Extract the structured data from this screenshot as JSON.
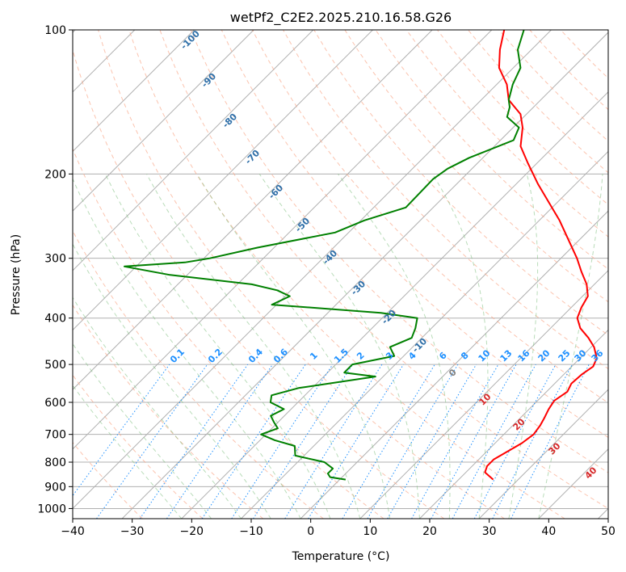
{
  "chart_data": {
    "type": "line",
    "title": "wetPf2_C2E2.2025.210.16.58.G26",
    "xlabel": "Temperature (°C)",
    "ylabel": "Pressure (hPa)",
    "xlim": [
      -40,
      50
    ],
    "ylim": [
      1050,
      100
    ],
    "y_scale": "log",
    "x_ticks": [
      -40,
      -30,
      -20,
      -10,
      0,
      10,
      20,
      30,
      40,
      50
    ],
    "y_ticks": [
      100,
      200,
      300,
      400,
      500,
      600,
      700,
      800,
      900,
      1000
    ],
    "grid": true,
    "skew_t": true,
    "series": [
      {
        "role": "temperature",
        "color": "#ff0000",
        "points": [
          [
            25.8,
            870
          ],
          [
            24.5,
            855
          ],
          [
            23.2,
            840
          ],
          [
            22.5,
            815
          ],
          [
            22.5,
            790
          ],
          [
            23.5,
            760
          ],
          [
            24.5,
            730
          ],
          [
            25.0,
            700
          ],
          [
            24.6,
            670
          ],
          [
            24.0,
            645
          ],
          [
            23.3,
            620
          ],
          [
            22.8,
            595
          ],
          [
            23.5,
            570
          ],
          [
            22.8,
            548
          ],
          [
            23.0,
            525
          ],
          [
            23.6,
            505
          ],
          [
            22.8,
            485
          ],
          [
            20.5,
            460
          ],
          [
            18.0,
            440
          ],
          [
            15.0,
            420
          ],
          [
            12.8,
            400
          ],
          [
            11.7,
            380
          ],
          [
            10.9,
            360
          ],
          [
            8.7,
            340
          ],
          [
            5.7,
            320
          ],
          [
            2.7,
            300
          ],
          [
            -6.6,
            250
          ],
          [
            -16.3,
            210
          ],
          [
            -21.5,
            190
          ],
          [
            -25.6,
            175
          ],
          [
            -28.4,
            160
          ],
          [
            -31.0,
            150
          ],
          [
            -35.4,
            140
          ],
          [
            -38.3,
            130
          ],
          [
            -42.4,
            120
          ],
          [
            -45.3,
            110
          ],
          [
            -47.9,
            100
          ]
        ]
      },
      {
        "role": "dewpoint",
        "color": "#008000",
        "points": [
          [
            1.0,
            870
          ],
          [
            -2.0,
            860
          ],
          [
            -3.0,
            845
          ],
          [
            -3.0,
            825
          ],
          [
            -5.5,
            800
          ],
          [
            -11.5,
            775
          ],
          [
            -13.2,
            740
          ],
          [
            -17.5,
            720
          ],
          [
            -20.8,
            700
          ],
          [
            -19.0,
            680
          ],
          [
            -20.7,
            660
          ],
          [
            -22.3,
            640
          ],
          [
            -21.2,
            620
          ],
          [
            -24.6,
            600
          ],
          [
            -25.6,
            580
          ],
          [
            -22.3,
            560
          ],
          [
            -11.3,
            530
          ],
          [
            -17.2,
            520
          ],
          [
            -17.2,
            500
          ],
          [
            -11.6,
            480
          ],
          [
            -13.8,
            460
          ],
          [
            -11.7,
            440
          ],
          [
            -12.7,
            420
          ],
          [
            -14.1,
            400
          ],
          [
            -21.1,
            390
          ],
          [
            -40.8,
            375
          ],
          [
            -39.2,
            360
          ],
          [
            -42.3,
            350
          ],
          [
            -47.6,
            340
          ],
          [
            -62.9,
            325
          ],
          [
            -72.0,
            312
          ],
          [
            -62.5,
            306
          ],
          [
            -59.0,
            300
          ],
          [
            -52.8,
            285
          ],
          [
            -42.3,
            265
          ],
          [
            -39.4,
            250
          ],
          [
            -34.6,
            235
          ],
          [
            -34.7,
            220
          ],
          [
            -34.8,
            205
          ],
          [
            -34.1,
            195
          ],
          [
            -32.3,
            185
          ],
          [
            -27.8,
            170
          ],
          [
            -29.0,
            160
          ],
          [
            -32.8,
            152
          ],
          [
            -34.0,
            145
          ],
          [
            -35.4,
            140
          ],
          [
            -37.3,
            130
          ],
          [
            -38.8,
            120
          ],
          [
            -42.3,
            110
          ],
          [
            -44.6,
            100
          ]
        ]
      }
    ],
    "dry_adiabat_labels": [
      "-100",
      "-90",
      "-80",
      "-70",
      "-60",
      "-50",
      "-40",
      "-30",
      "-20",
      "-10",
      "0"
    ],
    "moist_adiabat_labels": [
      "10",
      "20",
      "30",
      "40"
    ],
    "mixing_ratio_labels": [
      "0.1",
      "0.2",
      "0.4",
      "0.6",
      "1",
      "1.5",
      "2",
      "3",
      "4",
      "6",
      "8",
      "10",
      "13",
      "16",
      "20",
      "25",
      "30",
      "36"
    ],
    "colors": {
      "temperature": "#ff0000",
      "dewpoint": "#008000",
      "dry_adiabat": "#2f6fa8",
      "moist_adiabat": "#d62728",
      "mixing_ratio": "#1e90ff"
    }
  }
}
